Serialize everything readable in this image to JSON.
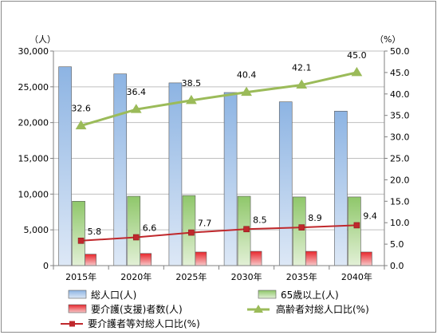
{
  "chart_data": {
    "type": "bar",
    "categories": [
      "2015年",
      "2020年",
      "2025年",
      "2030年",
      "2035年",
      "2040年"
    ],
    "y_left_unit": "（人）",
    "y_right_unit": "（%）",
    "y_left_ticks": [
      "0",
      "5,000",
      "10,000",
      "15,000",
      "20,000",
      "25,000",
      "30,000"
    ],
    "y_right_ticks": [
      "0.0",
      "5.0",
      "10.0",
      "15.0",
      "20.0",
      "25.0",
      "30.0",
      "35.0",
      "40.0",
      "45.0",
      "50.0"
    ],
    "ylim_left": [
      0,
      30000
    ],
    "ylim_right": [
      0,
      50
    ],
    "grid": true,
    "legend_position": "bottom",
    "series": [
      {
        "name": "総人口(人)",
        "type": "bar",
        "axis": "left",
        "color": "#8db4e3",
        "values": [
          27800,
          26800,
          25550,
          24200,
          22900,
          21600
        ]
      },
      {
        "name": "65歳以上(人)",
        "type": "bar",
        "axis": "left",
        "color": "#8fc76a",
        "values": [
          9000,
          9700,
          9800,
          9700,
          9600,
          9600
        ]
      },
      {
        "name": "要介護(支援)者数(人)",
        "type": "bar",
        "axis": "left",
        "color": "#d9262b",
        "values": [
          1600,
          1700,
          1900,
          2000,
          2000,
          1900
        ]
      },
      {
        "name": "高齢者対総人口比(%)",
        "type": "line",
        "axis": "right",
        "color": "#9bbb59",
        "marker": "triangle",
        "values": [
          32.6,
          36.4,
          38.5,
          40.4,
          42.1,
          45.0
        ],
        "labels": [
          "32.6",
          "36.4",
          "38.5",
          "40.4",
          "42.1",
          "45.0"
        ]
      },
      {
        "name": "要介護者等対総人口比(%)",
        "type": "line",
        "axis": "right",
        "color": "#c0282c",
        "marker": "square",
        "values": [
          5.8,
          6.6,
          7.7,
          8.5,
          8.9,
          9.4
        ],
        "labels": [
          "5.8",
          "6.6",
          "7.7",
          "8.5",
          "8.9",
          "9.4"
        ]
      }
    ]
  }
}
